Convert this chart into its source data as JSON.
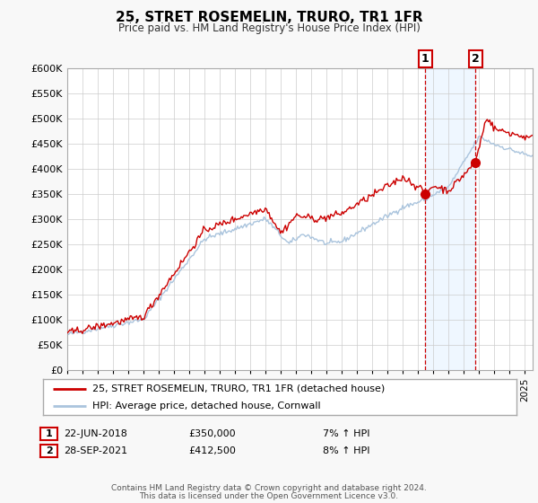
{
  "title": "25, STRET ROSEMELIN, TRURO, TR1 1FR",
  "subtitle": "Price paid vs. HM Land Registry's House Price Index (HPI)",
  "ylim": [
    0,
    600000
  ],
  "yticks": [
    0,
    50000,
    100000,
    150000,
    200000,
    250000,
    300000,
    350000,
    400000,
    450000,
    500000,
    550000,
    600000
  ],
  "ytick_labels": [
    "£0",
    "£50K",
    "£100K",
    "£150K",
    "£200K",
    "£250K",
    "£300K",
    "£350K",
    "£400K",
    "£450K",
    "£500K",
    "£550K",
    "£600K"
  ],
  "xlim_start": 1995.0,
  "xlim_end": 2025.5,
  "background_color": "#f8f8f8",
  "plot_bg_color": "#ffffff",
  "grid_color": "#cccccc",
  "hpi_line_color": "#aac4dd",
  "price_line_color": "#cc0000",
  "sale_marker_color": "#cc0000",
  "vline_color": "#cc0000",
  "shaded_region_color": "#ddeeff",
  "shaded_region_alpha": 0.45,
  "legend_box_color": "#ffffff",
  "legend_border_color": "#aaaaaa",
  "label_box_border_color": "#cc0000",
  "sale1_date": 2018.47,
  "sale1_price": 350000,
  "sale1_label": "1",
  "sale1_date_str": "22-JUN-2018",
  "sale1_price_str": "£350,000",
  "sale1_hpi_str": "7% ↑ HPI",
  "sale2_date": 2021.74,
  "sale2_price": 412500,
  "sale2_label": "2",
  "sale2_date_str": "28-SEP-2021",
  "sale2_price_str": "£412,500",
  "sale2_hpi_str": "8% ↑ HPI",
  "footer_text1": "Contains HM Land Registry data © Crown copyright and database right 2024.",
  "footer_text2": "This data is licensed under the Open Government Licence v3.0.",
  "legend_line1": "25, STRET ROSEMELIN, TRURO, TR1 1FR (detached house)",
  "legend_line2": "HPI: Average price, detached house, Cornwall"
}
